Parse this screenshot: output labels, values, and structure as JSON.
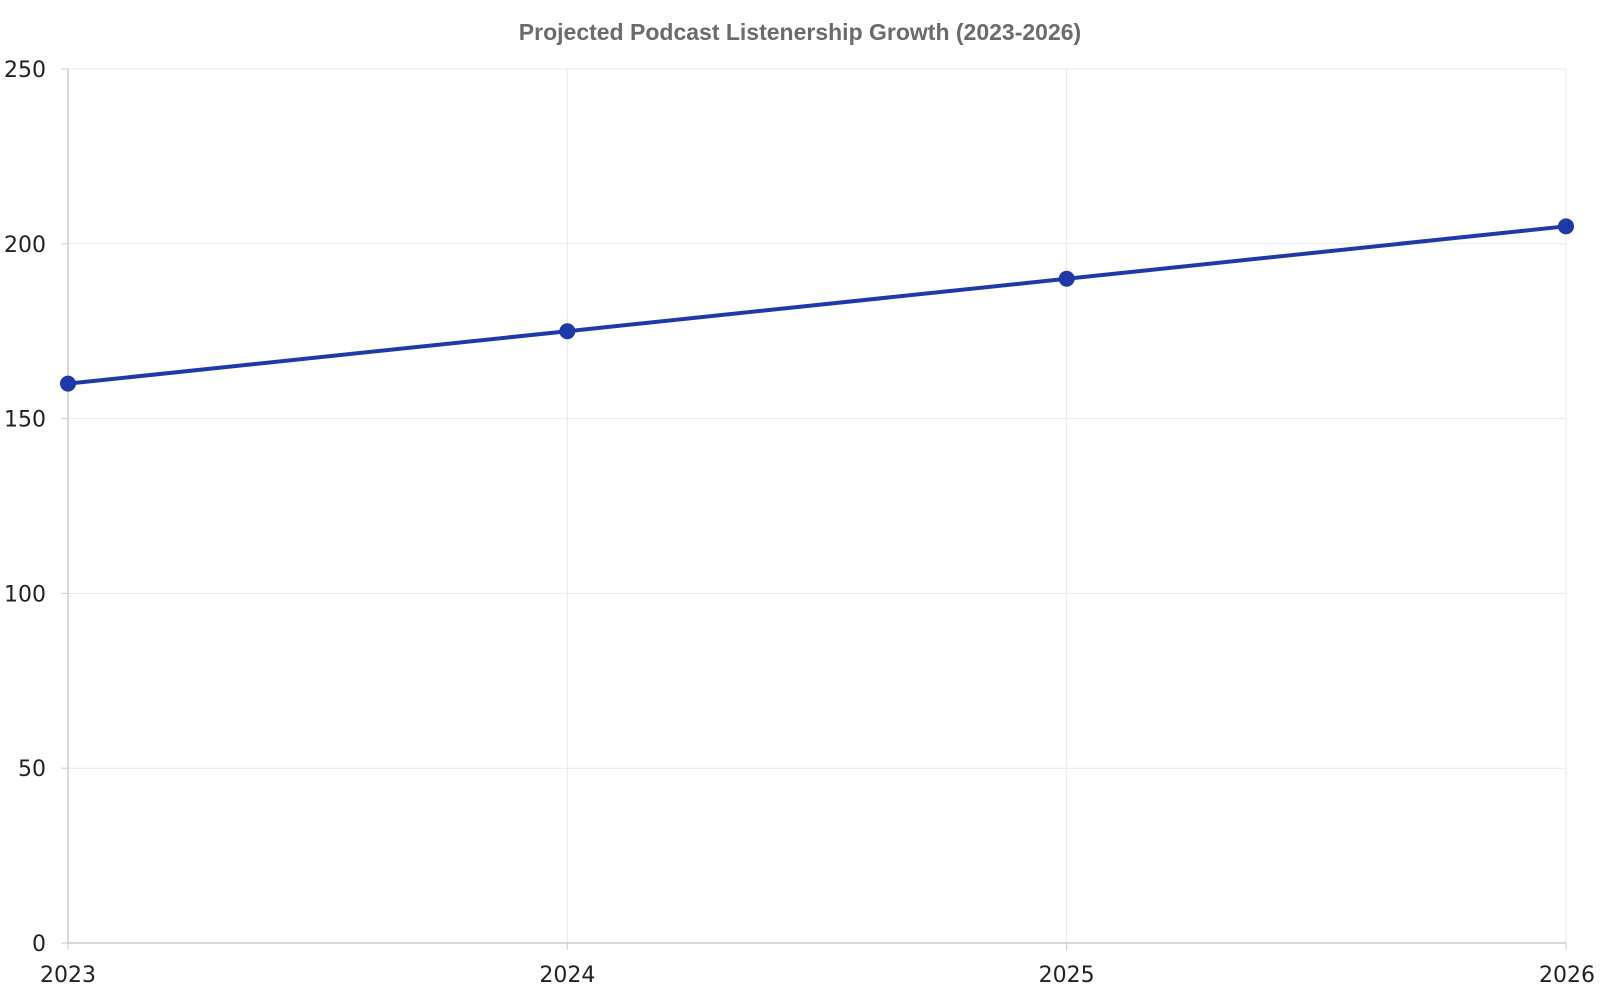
{
  "chart_data": {
    "type": "line",
    "title": "Projected Podcast Listenership Growth (2023-2026)",
    "xlabel": "",
    "ylabel": "",
    "categories": [
      "2023",
      "2024",
      "2025",
      "2026"
    ],
    "series": [
      {
        "values": [
          160,
          175,
          190,
          205
        ]
      }
    ],
    "ylim": [
      0,
      250
    ],
    "yticks": [
      "0",
      "50",
      "100",
      "150",
      "200",
      "250"
    ],
    "grid": true,
    "legend": "none",
    "colors": {
      "line": "#1f3aa8",
      "grid": "#e9e9e9",
      "axis": "#cccccc",
      "title": "#6b6b6b",
      "tick_text": "#222222"
    }
  }
}
